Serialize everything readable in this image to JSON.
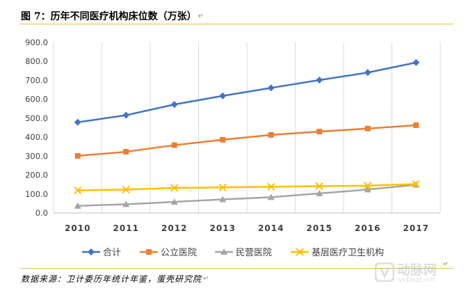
{
  "figure": {
    "title": "图 7：历年不同医疗机构床位数（万张）",
    "source": "数据来源：卫计委历年统计年鉴，蛋壳研究院"
  },
  "watermark": {
    "name": "动脉网",
    "url": "vcbeat.net"
  },
  "chart_data": {
    "type": "line",
    "title": "",
    "xlabel": "",
    "ylabel": "",
    "categories": [
      "2010",
      "2011",
      "2012",
      "2013",
      "2014",
      "2015",
      "2016",
      "2017"
    ],
    "ylim": [
      0,
      900
    ],
    "yticks": [
      "0.0",
      "100.0",
      "200.0",
      "300.0",
      "400.0",
      "500.0",
      "600.0",
      "700.0",
      "800.0",
      "900.0"
    ],
    "grid": "vertical",
    "legend_position": "bottom",
    "series": [
      {
        "name": "合计",
        "color": "#4472c4",
        "marker": "diamond",
        "values": [
          478.7,
          516.0,
          572.5,
          618.2,
          660.1,
          701.5,
          741.0,
          794.0
        ]
      },
      {
        "name": "公立医院",
        "color": "#ed7d31",
        "marker": "square",
        "values": [
          301.4,
          323.0,
          357.9,
          386.5,
          412.0,
          429.6,
          445.5,
          463.1
        ]
      },
      {
        "name": "民营医院",
        "color": "#a5a5a5",
        "marker": "triangle",
        "values": [
          37.4,
          46.0,
          58.5,
          71.5,
          83.0,
          103.4,
          123.4,
          148.9
        ]
      },
      {
        "name": "基层医疗卫生机构",
        "color": "#ffc000",
        "marker": "x",
        "values": [
          119.2,
          123.4,
          132.4,
          134.9,
          138.1,
          141.4,
          144.2,
          152.9
        ]
      }
    ]
  }
}
